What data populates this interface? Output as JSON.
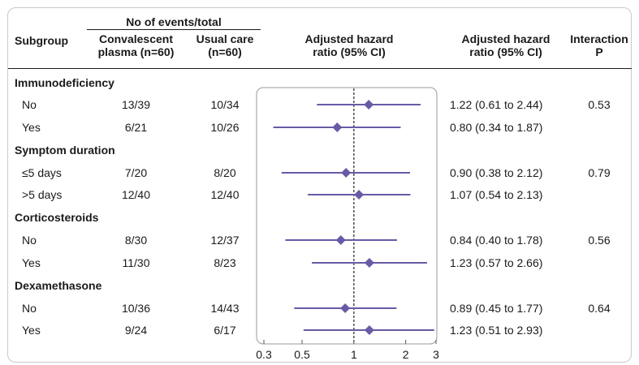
{
  "headers": {
    "events_group": "No of events/total",
    "subgroup": "Subgroup",
    "plasma_line1": "Convalescent",
    "plasma_line2": "plasma (n=60)",
    "usual_line1": "Usual care",
    "usual_line2": "(n=60)",
    "plot_line1": "Adjusted hazard",
    "plot_line2": "ratio (95% CI)",
    "hr_line1": "Adjusted hazard",
    "hr_line2": "ratio (95% CI)",
    "interaction_line1": "Interaction",
    "interaction_line2": "P"
  },
  "groups": [
    {
      "title": "Immunodeficiency",
      "rows": [
        {
          "label": "No",
          "plasma": "13/39",
          "usual": "10/34",
          "hr_text": "1.22 (0.61 to 2.44)",
          "p": "0.53"
        },
        {
          "label": "Yes",
          "plasma": "6/21",
          "usual": "10/26",
          "hr_text": "0.80 (0.34 to 1.87)",
          "p": ""
        }
      ]
    },
    {
      "title": "Symptom duration",
      "rows": [
        {
          "label": "≤5 days",
          "plasma": "7/20",
          "usual": "8/20",
          "hr_text": "0.90 (0.38 to 2.12)",
          "p": "0.79"
        },
        {
          "label": ">5 days",
          "plasma": "12/40",
          "usual": "12/40",
          "hr_text": "1.07 (0.54 to 2.13)",
          "p": ""
        }
      ]
    },
    {
      "title": "Corticosteroids",
      "rows": [
        {
          "label": "No",
          "plasma": "8/30",
          "usual": "12/37",
          "hr_text": "0.84 (0.40 to 1.78)",
          "p": "0.56"
        },
        {
          "label": "Yes",
          "plasma": "11/30",
          "usual": "8/23",
          "hr_text": "1.23 (0.57 to 2.66)",
          "p": ""
        }
      ]
    },
    {
      "title": "Dexamethasone",
      "rows": [
        {
          "label": "No",
          "plasma": "10/36",
          "usual": "14/43",
          "hr_text": "0.89 (0.45 to 1.77)",
          "p": "0.64"
        },
        {
          "label": "Yes",
          "plasma": "9/24",
          "usual": "6/17",
          "hr_text": "1.23 (0.51 to 2.93)",
          "p": ""
        }
      ]
    }
  ],
  "chart_data": {
    "type": "forest",
    "xscale": "log",
    "xlim": [
      0.3,
      3
    ],
    "xticks": [
      0.3,
      0.5,
      1,
      2,
      3
    ],
    "xtick_labels": [
      "0.3",
      "0.5",
      "1",
      "2",
      "3"
    ],
    "reference_line": 1,
    "colors": {
      "marker": "#6a5aa6",
      "line": "#6a5aa6",
      "reference": "#222222",
      "frame": "#9a9a9a"
    },
    "series": [
      {
        "group": "Immunodeficiency",
        "label": "No",
        "hr": 1.22,
        "lower": 0.61,
        "upper": 2.44
      },
      {
        "group": "Immunodeficiency",
        "label": "Yes",
        "hr": 0.8,
        "lower": 0.34,
        "upper": 1.87
      },
      {
        "group": "Symptom duration",
        "label": "≤5 days",
        "hr": 0.9,
        "lower": 0.38,
        "upper": 2.12
      },
      {
        "group": "Symptom duration",
        "label": ">5 days",
        "hr": 1.07,
        "lower": 0.54,
        "upper": 2.13
      },
      {
        "group": "Corticosteroids",
        "label": "No",
        "hr": 0.84,
        "lower": 0.4,
        "upper": 1.78
      },
      {
        "group": "Corticosteroids",
        "label": "Yes",
        "hr": 1.23,
        "lower": 0.57,
        "upper": 2.66
      },
      {
        "group": "Dexamethasone",
        "label": "No",
        "hr": 0.89,
        "lower": 0.45,
        "upper": 1.77
      },
      {
        "group": "Dexamethasone",
        "label": "Yes",
        "hr": 1.23,
        "lower": 0.51,
        "upper": 2.93
      }
    ]
  }
}
